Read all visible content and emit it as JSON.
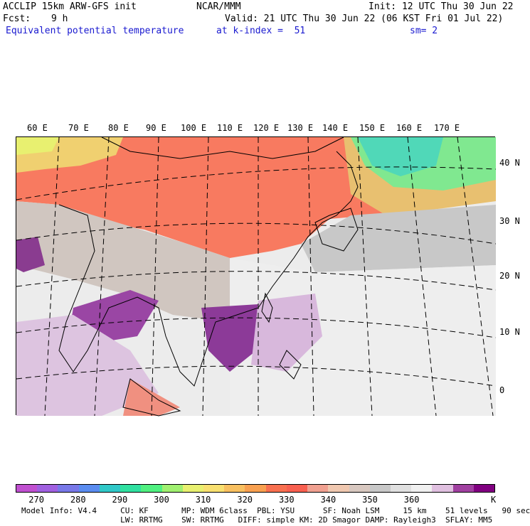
{
  "header": {
    "model": "ACCLIP 15km ARW-GFS init",
    "center": "NCAR/MMM",
    "init": "Init: 12 UTC Thu 30 Jun 22",
    "fcst_label": "Fcst:",
    "fcst_value": "9 h",
    "valid": "Valid: 21 UTC Thu 30 Jun 22 (06 KST Fri 01 Jul 22)",
    "field": "Equivalent potential temperature",
    "level": "at k-index =  51",
    "smoothing": "sm= 2"
  },
  "map": {
    "lon_labels": [
      "60 E",
      "70 E",
      "80 E",
      "90 E",
      "100 E",
      "110 E",
      "120 E",
      "130 E",
      "140 E",
      "150 E",
      "160 E",
      "170 E"
    ],
    "lat_labels": [
      "40 N",
      "30 N",
      "20 N",
      "10 N",
      "0"
    ]
  },
  "colorbar": {
    "unit": "K",
    "tick_labels": [
      "270",
      "280",
      "290",
      "300",
      "310",
      "320",
      "330",
      "340",
      "350",
      "360"
    ],
    "colors": [
      "#c050d0",
      "#a060e0",
      "#7878e8",
      "#5a8cf0",
      "#30c8c8",
      "#30e0a0",
      "#50f080",
      "#a0f070",
      "#e8f070",
      "#f8e070",
      "#f8c060",
      "#f8a050",
      "#f87050",
      "#f86050",
      "#f0a090",
      "#f0c8b0",
      "#d8c8c0",
      "#c8c8c8",
      "#e0e0e0",
      "#f0f0f0",
      "#e0c0e0",
      "#a040a0",
      "#800080"
    ]
  },
  "footer": {
    "line1": "Model Info: V4.4     CU: KF       MP: WDM 6class  PBL: YSU      SF: Noah LSM     15 km    51 levels   90 sec",
    "line2": "                     LW: RRTMG    SW: RRTMG   DIFF: simple KM: 2D Smagor DAMP: Rayleigh3  SFLAY: MM5"
  }
}
